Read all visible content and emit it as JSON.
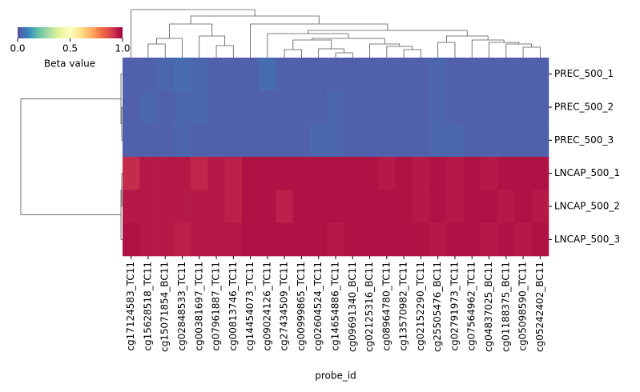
{
  "chart_data": {
    "type": "heatmap",
    "xlabel": "probe_id",
    "colorbar_label": "Beta value",
    "colormap": "Spectral_r",
    "clim": [
      0,
      1
    ],
    "cticks": [
      {
        "value": 0,
        "label": "0.0"
      },
      0.5,
      {
        "value": 1,
        "label": "1.0"
      }
    ],
    "rows": [
      "PREC_500_1",
      "PREC_500_2",
      "PREC_500_3",
      "LNCAP_500_1",
      "LNCAP_500_2",
      "LNCAP_500_3"
    ],
    "columns": [
      "cg17124583_TC11",
      "cg15628518_TC11",
      "cg15071854_BC11",
      "cg02848533_TC11",
      "cg00381697_TC11",
      "cg07961887_TC11",
      "cg00813746_TC11",
      "cg14454073_TC11",
      "cg09024126_TC11",
      "cg27434509_TC11",
      "cg00999865_TC11",
      "cg02604524_TC11",
      "cg14654886_TC11",
      "cg09691340_BC11",
      "cg02125316_BC11",
      "cg08964780_TC11",
      "cg13570982_TC11",
      "cg02152290_TC11",
      "cg25505476_BC11",
      "cg02791973_TC11",
      "cg07564962_TC11",
      "cg04837025_BC11",
      "cg01188375_BC11",
      "cg05098590_TC11",
      "cg05242402_BC11"
    ],
    "values": [
      [
        0.03,
        0.03,
        0.04,
        0.05,
        0.04,
        0.03,
        0.03,
        0.03,
        0.05,
        0.03,
        0.03,
        0.03,
        0.03,
        0.03,
        0.03,
        0.03,
        0.03,
        0.03,
        0.04,
        0.03,
        0.03,
        0.03,
        0.03,
        0.03,
        0.03
      ],
      [
        0.03,
        0.04,
        0.03,
        0.04,
        0.04,
        0.03,
        0.03,
        0.03,
        0.03,
        0.03,
        0.03,
        0.03,
        0.04,
        0.03,
        0.03,
        0.03,
        0.03,
        0.03,
        0.04,
        0.03,
        0.03,
        0.03,
        0.03,
        0.03,
        0.03
      ],
      [
        0.03,
        0.03,
        0.03,
        0.04,
        0.03,
        0.03,
        0.03,
        0.03,
        0.03,
        0.03,
        0.03,
        0.04,
        0.04,
        0.03,
        0.03,
        0.03,
        0.03,
        0.03,
        0.04,
        0.04,
        0.03,
        0.03,
        0.03,
        0.03,
        0.03
      ],
      [
        0.93,
        0.96,
        0.96,
        0.96,
        0.94,
        0.96,
        0.95,
        0.97,
        0.97,
        0.97,
        0.97,
        0.97,
        0.97,
        0.97,
        0.97,
        0.96,
        0.97,
        0.96,
        0.97,
        0.96,
        0.97,
        0.96,
        0.97,
        0.97,
        0.97
      ],
      [
        0.96,
        0.96,
        0.96,
        0.96,
        0.96,
        0.96,
        0.95,
        0.97,
        0.97,
        0.95,
        0.97,
        0.97,
        0.97,
        0.97,
        0.97,
        0.97,
        0.97,
        0.96,
        0.97,
        0.96,
        0.97,
        0.97,
        0.96,
        0.97,
        0.96
      ],
      [
        0.97,
        0.96,
        0.96,
        0.95,
        0.96,
        0.96,
        0.96,
        0.97,
        0.97,
        0.97,
        0.97,
        0.97,
        0.96,
        0.97,
        0.97,
        0.97,
        0.97,
        0.97,
        0.96,
        0.97,
        0.97,
        0.96,
        0.97,
        0.96,
        0.97
      ]
    ]
  }
}
